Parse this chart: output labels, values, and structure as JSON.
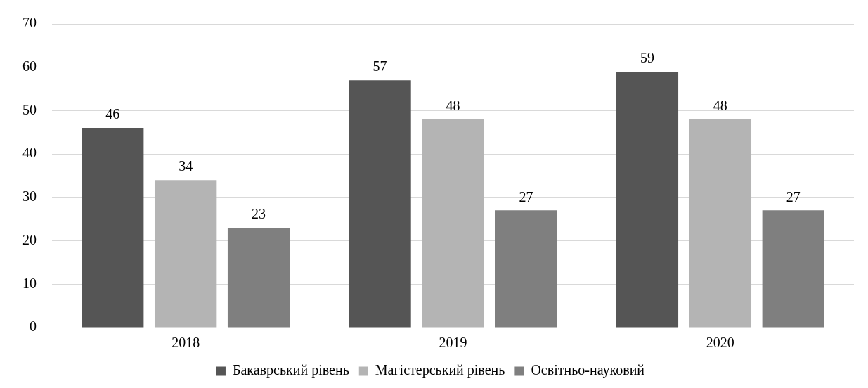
{
  "chart_data": {
    "type": "bar",
    "categories": [
      "2018",
      "2019",
      "2020"
    ],
    "series": [
      {
        "name": "Бакаврський рівень",
        "color": "#555555",
        "values": [
          46,
          57,
          59
        ]
      },
      {
        "name": "Магістерський рівень",
        "color": "#b4b4b4",
        "values": [
          34,
          48,
          48
        ]
      },
      {
        "name": "Освітньо-науковий",
        "color": "#7f7f7f",
        "values": [
          23,
          27,
          27
        ]
      }
    ],
    "ylim": [
      0,
      70
    ],
    "yticks": [
      0,
      10,
      20,
      30,
      40,
      50,
      60,
      70
    ],
    "grid": "y",
    "legend": "bottom",
    "data_labels": true
  }
}
